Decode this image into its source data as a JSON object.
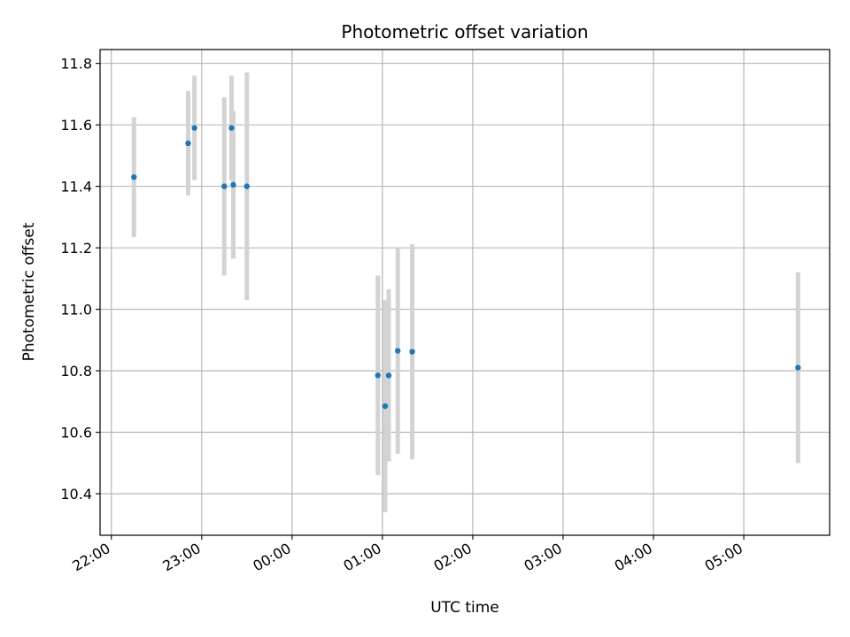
{
  "chart_data": {
    "type": "scatter",
    "title": "Photometric offset variation",
    "xlabel": "UTC time",
    "ylabel": "Photometric offset",
    "x_tick_labels": [
      "22:00",
      "23:00",
      "00:00",
      "01:00",
      "02:00",
      "03:00",
      "04:00",
      "05:00"
    ],
    "x_tick_hours": [
      0,
      1,
      2,
      3,
      4,
      5,
      6,
      7
    ],
    "xlim_hours": [
      -0.125,
      7.95
    ],
    "y_tick_labels": [
      "10.4",
      "10.6",
      "10.8",
      "11.0",
      "11.2",
      "11.4",
      "11.6",
      "11.8"
    ],
    "y_ticks": [
      10.4,
      10.6,
      10.8,
      11.0,
      11.2,
      11.4,
      11.6,
      11.8
    ],
    "ylim": [
      10.265,
      11.845
    ],
    "grid": true,
    "marker_color": "#1f77b4",
    "errorbar_color": "#d3d3d3",
    "points": [
      {
        "time": "22:15",
        "t": 0.25,
        "y": 11.43,
        "err": 0.195
      },
      {
        "time": "22:51",
        "t": 0.85,
        "y": 11.54,
        "err": 0.17
      },
      {
        "time": "22:55",
        "t": 0.92,
        "y": 11.59,
        "err": 0.17
      },
      {
        "time": "23:15",
        "t": 1.25,
        "y": 11.4,
        "err": 0.29
      },
      {
        "time": "23:20",
        "t": 1.33,
        "y": 11.59,
        "err": 0.17
      },
      {
        "time": "23:21",
        "t": 1.35,
        "y": 11.405,
        "err": 0.24
      },
      {
        "time": "23:30",
        "t": 1.5,
        "y": 11.4,
        "err": 0.37
      },
      {
        "time": "00:57",
        "t": 2.95,
        "y": 10.785,
        "err": 0.325
      },
      {
        "time": "01:02",
        "t": 3.03,
        "y": 10.685,
        "err": 0.345
      },
      {
        "time": "01:04",
        "t": 3.07,
        "y": 10.785,
        "err": 0.28
      },
      {
        "time": "01:10",
        "t": 3.17,
        "y": 10.865,
        "err": 0.335
      },
      {
        "time": "01:20",
        "t": 3.33,
        "y": 10.862,
        "err": 0.35
      },
      {
        "time": "05:36",
        "t": 7.6,
        "y": 10.81,
        "err": 0.31
      }
    ]
  }
}
